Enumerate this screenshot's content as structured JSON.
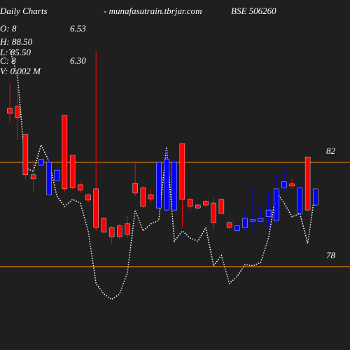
{
  "chart_data": {
    "type": "candlestick",
    "title": "Daily Charts",
    "subtitle": "- munafasutrain.tbrjar.com",
    "symbol": "BSE 506260",
    "info": [
      "O: 8",
      "6.53",
      "H: 88.50",
      "L: 85.50",
      "C: 8",
      "6.30",
      "V: 0.002  M"
    ],
    "open": [
      84.07,
      84.15,
      83.07,
      81.52,
      81.89,
      80.76,
      81.3,
      83.8,
      82.27,
      81.14,
      80.76,
      80.98,
      79.85,
      79.5,
      79.56,
      79.64,
      81.19,
      81.03,
      80.76,
      80.25,
      80.17,
      80.17,
      82.72,
      80.58,
      80.36,
      80.5,
      80.44,
      80.58,
      79.69,
      79.37,
      79.5,
      79.74,
      79.74,
      79.91,
      79.77,
      81.03,
      81.17,
      80.04,
      82.21,
      80.36
    ],
    "high": [
      85.01,
      84.87,
      83.07,
      82.05,
      82.27,
      82.19,
      81.79,
      83.8,
      82.27,
      81.25,
      80.82,
      86.27,
      79.91,
      79.56,
      79.64,
      79.96,
      82.05,
      81.09,
      80.98,
      82.05,
      82.46,
      82.11,
      82.72,
      80.66,
      80.44,
      80.55,
      80.63,
      80.63,
      79.74,
      79.61,
      80.17,
      81.03,
      80.31,
      80.85,
      81.52,
      81.79,
      81.38,
      81.25,
      82.21,
      81.3
    ],
    "low": [
      83.53,
      82.86,
      81.38,
      80.85,
      81.65,
      80.71,
      81.25,
      80.85,
      80.98,
      80.82,
      80.44,
      79.37,
      79.26,
      78.89,
      79.05,
      79.1,
      80.71,
      80.25,
      80.44,
      80.17,
      80.04,
      80.12,
      79.5,
      80.17,
      80.2,
      80.28,
      79.42,
      80.01,
      79.42,
      79.32,
      79.37,
      79.37,
      79.69,
      79.5,
      79.64,
      80.85,
      80.98,
      79.96,
      80.12,
      80.17
    ],
    "close": [
      83.88,
      83.72,
      81.52,
      81.36,
      82.11,
      82.0,
      81.7,
      80.98,
      81.03,
      80.93,
      80.55,
      79.5,
      79.32,
      79.15,
      79.15,
      79.23,
      80.82,
      80.31,
      80.6,
      82.0,
      82.11,
      82.0,
      80.58,
      80.31,
      80.25,
      80.36,
      79.69,
      80.04,
      79.5,
      79.56,
      79.85,
      79.8,
      79.85,
      80.17,
      80.98,
      81.25,
      81.09,
      81.03,
      80.17,
      80.98
    ],
    "up_color": "#0000ff",
    "down_color": "#ff0000",
    "overlay": {
      "color": "#ffffff",
      "values": [
        86.35,
        85.28,
        81.79,
        81.65,
        82.67,
        82.05,
        80.71,
        80.31,
        80.58,
        80.44,
        79.37,
        77.35,
        76.95,
        76.74,
        76.95,
        77.76,
        80.17,
        79.37,
        79.64,
        79.77,
        82.59,
        78.97,
        79.37,
        79.1,
        78.97,
        79.5,
        78.03,
        78.43,
        77.35,
        77.62,
        78.08,
        78.03,
        78.16,
        79.1,
        80.85,
        80.44,
        79.91,
        80.04,
        78.89,
        80.98
      ]
    },
    "ylim": [
      74.8,
      88.23
    ],
    "yticks": [
      78,
      82
    ],
    "grid": true,
    "grid_color": "#ff8c00"
  }
}
